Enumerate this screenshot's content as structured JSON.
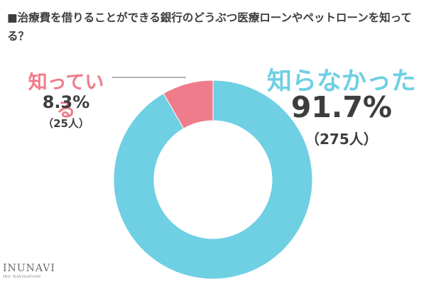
{
  "title": "■治療費を借りることができる銀行のどうぶつ医療ローンやペットローンを知ってる？",
  "chart_data": {
    "type": "pie",
    "donut": true,
    "categories": [
      "知らなかった",
      "知っている"
    ],
    "values": [
      91.7,
      8.3
    ],
    "counts": [
      "（275人）",
      "（25人）"
    ],
    "value_labels": [
      "91.7%",
      "8.3%"
    ],
    "colors": [
      "#6fcfe3",
      "#ef7c8a"
    ]
  },
  "logo": {
    "main": "INUNAVI",
    "sub": "INU NAVIGATION"
  }
}
